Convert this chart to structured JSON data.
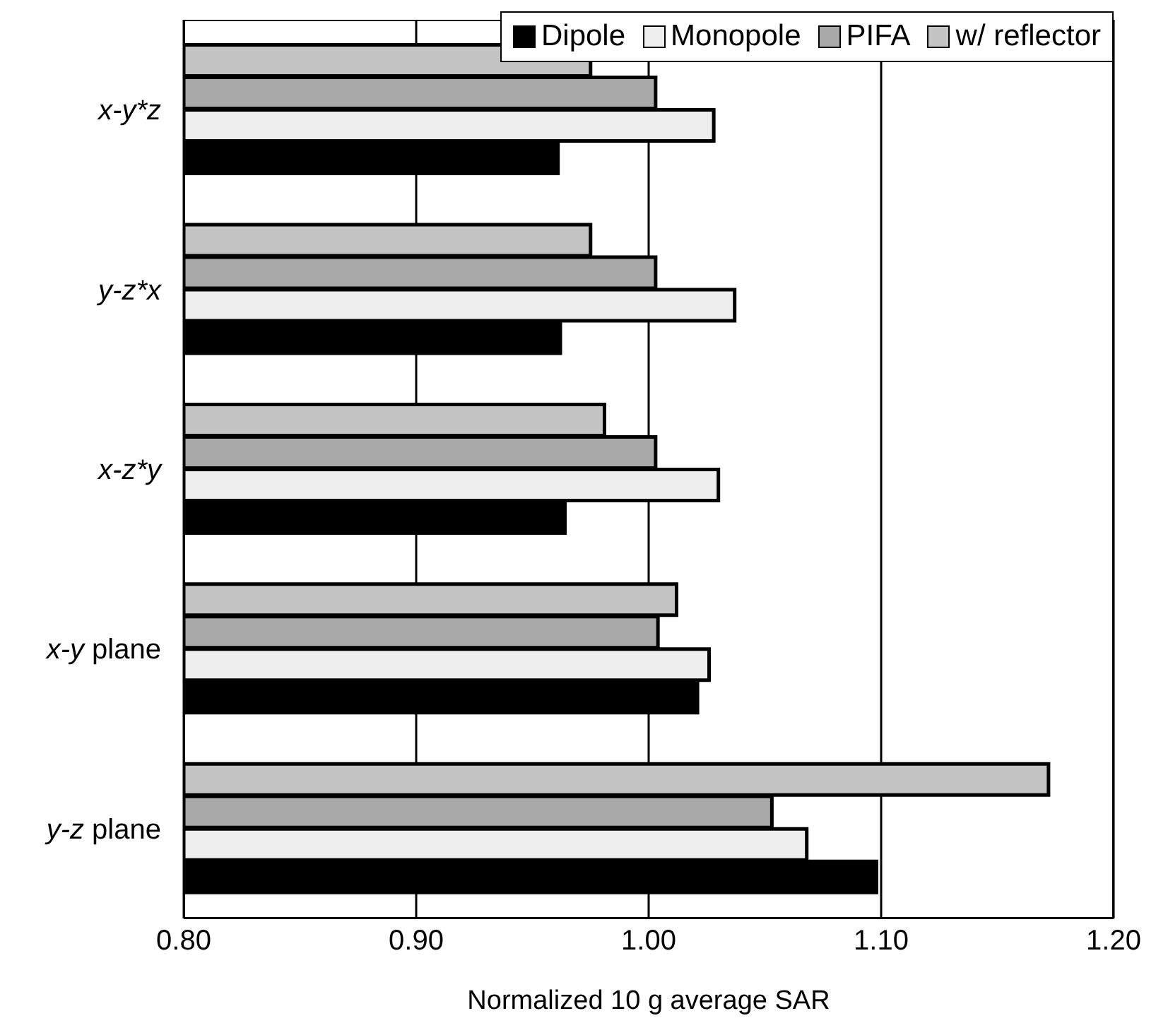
{
  "chart_data": {
    "type": "bar",
    "orientation": "horizontal",
    "xlabel": "Normalized 10 g average SAR",
    "categories": [
      "x-y*z",
      "y-z*x",
      "x-z*y",
      "x-y plane",
      "y-z plane"
    ],
    "series": [
      {
        "name": "Dipole",
        "color": "#000000",
        "values": [
          0.961,
          0.962,
          0.964,
          1.021,
          1.098
        ]
      },
      {
        "name": "Monopole",
        "color": "#eeeeee",
        "values": [
          1.028,
          1.037,
          1.03,
          1.026,
          1.068
        ]
      },
      {
        "name": "PIFA",
        "color": "#a9a9a9",
        "values": [
          1.003,
          1.003,
          1.003,
          1.004,
          1.053
        ]
      },
      {
        "name": "w/ reflector",
        "color": "#c4c4c4",
        "values": [
          0.975,
          0.975,
          0.981,
          1.012,
          1.172
        ]
      }
    ],
    "xlim": [
      0.8,
      1.2
    ],
    "xticks": [
      {
        "value": 0.8,
        "label": "0.80"
      },
      {
        "value": 0.9,
        "label": "0.90"
      },
      {
        "value": 1.0,
        "label": "1.00"
      },
      {
        "value": 1.1,
        "label": "1.10"
      },
      {
        "value": 1.2,
        "label": "1.20"
      }
    ],
    "grid": "x",
    "legend": "top right"
  }
}
